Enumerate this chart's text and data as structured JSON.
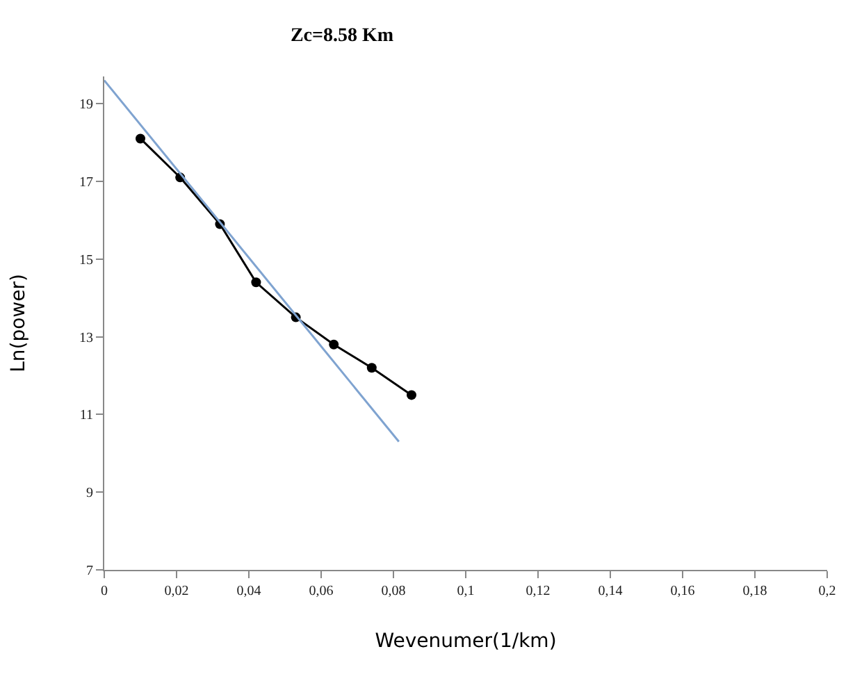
{
  "chart_data": {
    "type": "line",
    "title": "Zc=8.58 Km",
    "xlabel": "Wevenumer(1/km)",
    "ylabel": "Ln(power)",
    "x": [
      0.01,
      0.021,
      0.032,
      0.042,
      0.053,
      0.0635,
      0.074,
      0.085
    ],
    "series": [
      {
        "color": "#000000",
        "values": [
          18.1,
          17.1,
          15.9,
          14.4,
          13.5,
          12.8,
          12.2,
          11.5
        ],
        "marker": "circle"
      },
      {
        "type": "line",
        "color": "#7fa3d0",
        "x": [
          0,
          0.0815
        ],
        "values": [
          19.6,
          10.3
        ],
        "marker": "none"
      }
    ],
    "xlim": [
      0,
      0.2
    ],
    "ylim": [
      7,
      19.7
    ],
    "xticks": [
      0,
      {
        "value": 0.02,
        "label": "0,02"
      },
      {
        "value": 0.04,
        "label": "0,04"
      },
      {
        "value": 0.06,
        "label": "0,06"
      },
      {
        "value": 0.08,
        "label": "0,08"
      },
      {
        "value": 0.1,
        "label": "0,1"
      },
      {
        "value": 0.12,
        "label": "0,12"
      },
      {
        "value": 0.14,
        "label": "0,14"
      },
      {
        "value": 0.16,
        "label": "0,16"
      },
      {
        "value": 0.18,
        "label": "0,18"
      },
      {
        "value": 0.2,
        "label": "0,2"
      }
    ],
    "yticks": [
      7,
      9,
      11,
      13,
      15,
      17,
      19
    ]
  }
}
